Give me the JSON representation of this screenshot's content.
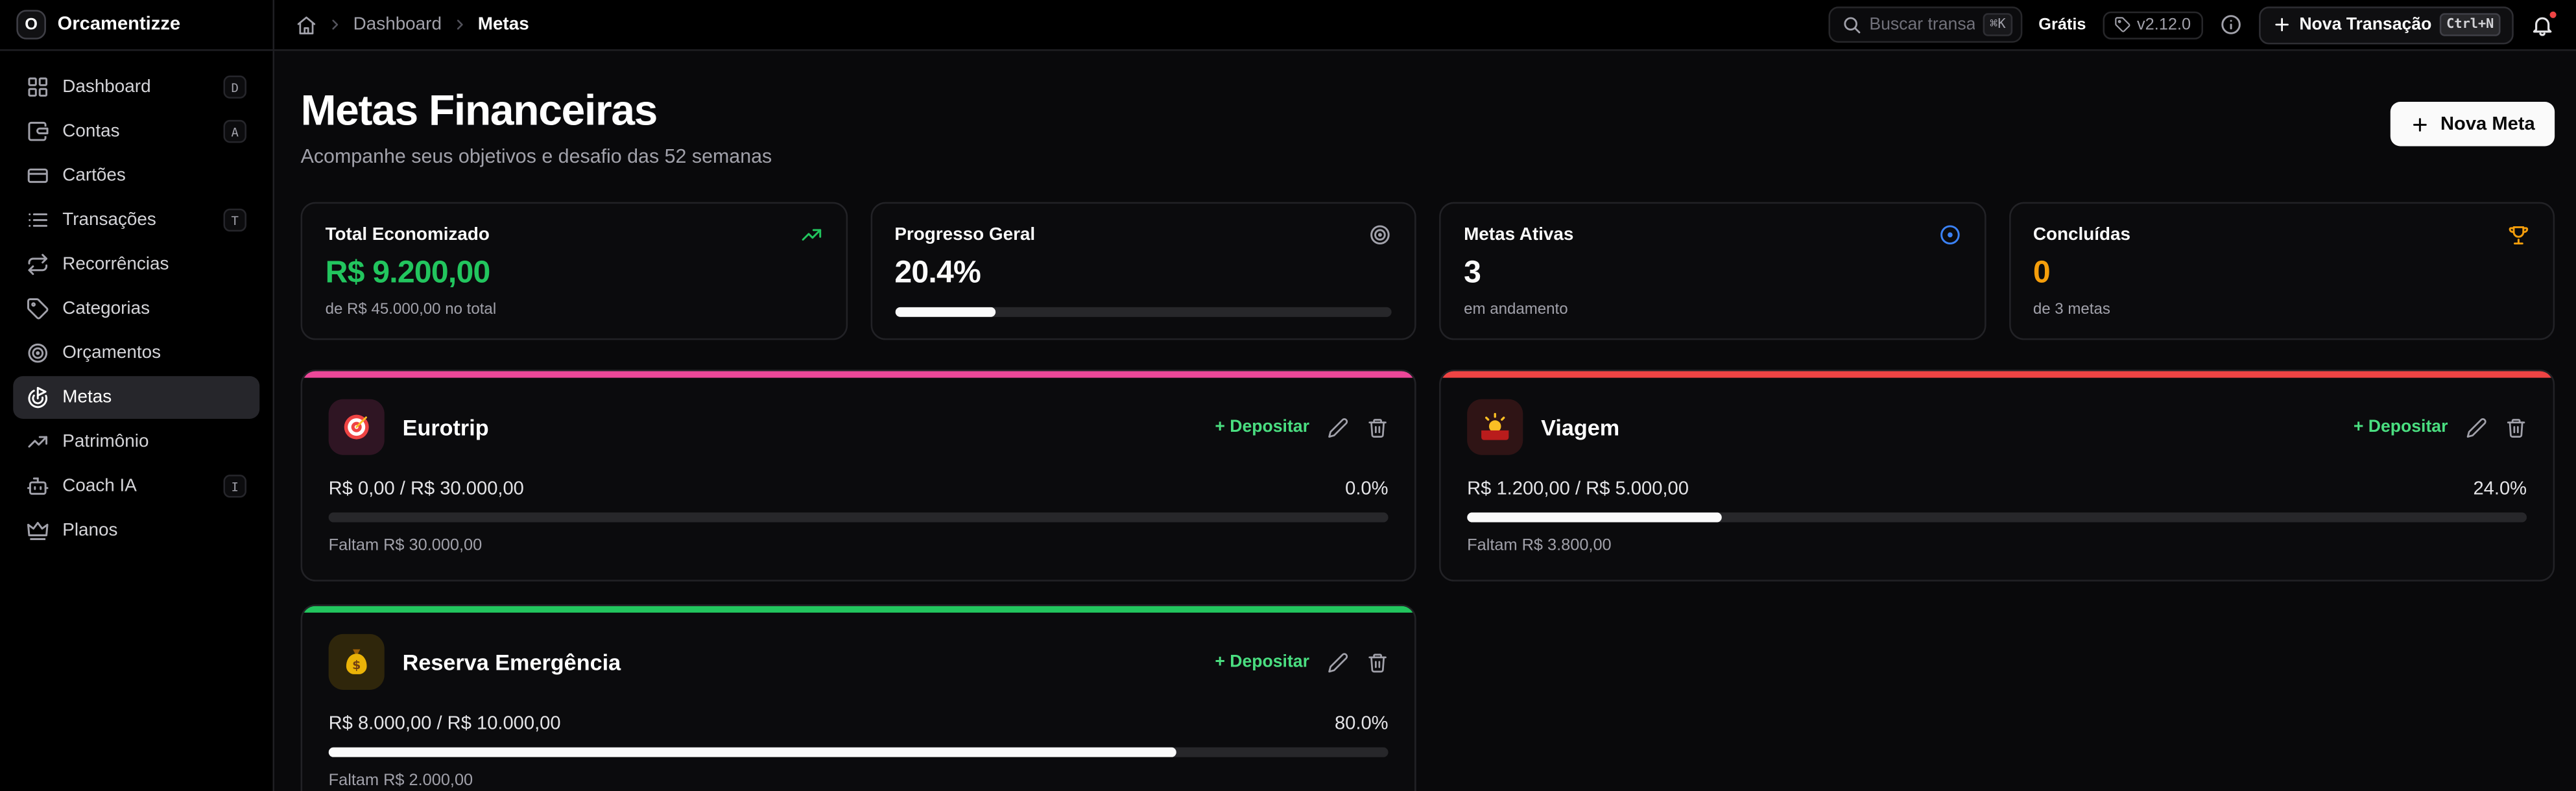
{
  "app": {
    "name": "Orcamentizze",
    "logo_letter": "O"
  },
  "topbar": {
    "breadcrumb": {
      "level1": "Dashboard",
      "level2": "Metas"
    },
    "search": {
      "placeholder": "Buscar transaç",
      "kbd": "⌘K"
    },
    "plan_badge": "Grátis",
    "version": "v2.12.0",
    "new_transaction": {
      "label": "Nova Transação",
      "kbd": "Ctrl+N"
    }
  },
  "sidebar": {
    "active": "Metas",
    "items": [
      {
        "label": "Dashboard",
        "kbd": "D"
      },
      {
        "label": "Contas",
        "kbd": "A"
      },
      {
        "label": "Cartões"
      },
      {
        "label": "Transações",
        "kbd": "T"
      },
      {
        "label": "Recorrências"
      },
      {
        "label": "Categorias"
      },
      {
        "label": "Orçamentos"
      },
      {
        "label": "Metas"
      },
      {
        "label": "Patrimônio"
      },
      {
        "label": "Coach IA",
        "kbd": "I"
      },
      {
        "label": "Planos"
      }
    ]
  },
  "page": {
    "title": "Metas Financeiras",
    "subtitle": "Acompanhe seus objetivos e desafio das 52 semanas",
    "new_goal_label": "Nova Meta"
  },
  "stats": [
    {
      "label": "Total Economizado",
      "value": "R$ 9.200,00",
      "sub": "de R$ 45.000,00 no total",
      "value_color": "#22c55e"
    },
    {
      "label": "Progresso Geral",
      "value": "20.4%",
      "progress": 20.4,
      "value_color": "#fafafa"
    },
    {
      "label": "Metas Ativas",
      "value": "3",
      "sub": "em andamento",
      "value_color": "#fafafa"
    },
    {
      "label": "Concluídas",
      "value": "0",
      "sub": "de 3 metas",
      "value_color": "#f59e0b"
    }
  ],
  "goals": [
    {
      "name": "Eurotrip",
      "amounts": "R$ 0,00 / R$ 30.000,00",
      "percent": "0.0%",
      "progress": 0,
      "remaining": "Faltam R$ 30.000,00",
      "accent": "#ec4899",
      "icon_bg": "rgba(236,72,153,0.16)",
      "deposit_label": "+ Depositar"
    },
    {
      "name": "Viagem",
      "amounts": "R$ 1.200,00 / R$ 5.000,00",
      "percent": "24.0%",
      "progress": 24,
      "remaining": "Faltam R$ 3.800,00",
      "accent": "#ef4444",
      "icon_bg": "rgba(239,68,68,0.16)",
      "deposit_label": "+ Depositar"
    },
    {
      "name": "Reserva Emergência",
      "amounts": "R$ 8.000,00 / R$ 10.000,00",
      "percent": "80.0%",
      "progress": 80,
      "remaining": "Faltam R$ 2.000,00",
      "accent": "#22c55e",
      "icon_bg": "rgba(234,179,8,0.16)",
      "deposit_label": "+ Depositar"
    }
  ],
  "colors": {
    "green": "#22c55e",
    "amber": "#f59e0b",
    "blue": "#3b82f6",
    "pink": "#ec4899",
    "red": "#ef4444"
  }
}
